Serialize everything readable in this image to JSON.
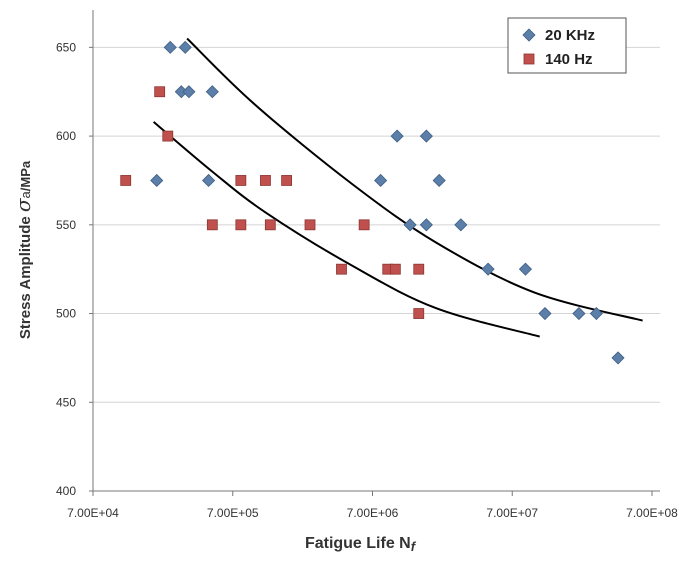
{
  "chart_data": {
    "type": "scatter",
    "x_scale": "log",
    "xlim": [
      70000,
      700000000
    ],
    "ylim": [
      400,
      675
    ],
    "grid": {
      "horizontal": true,
      "vertical": false
    },
    "legend_position": "top-right",
    "xlabel": "Fatigue Life N",
    "xlabel_sub": "f",
    "ylabel": "Stress Amplitude",
    "ylabel_symbol": "σ",
    "ylabel_sub": "a",
    "ylabel_unit": "/MPa",
    "x_ticks": [
      {
        "value": 70000,
        "label": "7.00E+04"
      },
      {
        "value": 700000,
        "label": "7.00E+05"
      },
      {
        "value": 7000000,
        "label": "7.00E+06"
      },
      {
        "value": 70000000,
        "label": "7.00E+07"
      },
      {
        "value": 700000000,
        "label": "7.00E+08"
      }
    ],
    "y_ticks": [
      {
        "value": 400,
        "label": "400"
      },
      {
        "value": 450,
        "label": "450"
      },
      {
        "value": 500,
        "label": "500"
      },
      {
        "value": 550,
        "label": "550"
      },
      {
        "value": 600,
        "label": "600"
      },
      {
        "value": 650,
        "label": "650"
      }
    ],
    "series": [
      {
        "name": "20 KHz",
        "marker": "diamond",
        "color": "#5b7fa8",
        "points": [
          {
            "x": 250000,
            "y": 650
          },
          {
            "x": 320000,
            "y": 650
          },
          {
            "x": 300000,
            "y": 625
          },
          {
            "x": 340000,
            "y": 625
          },
          {
            "x": 500000,
            "y": 625
          },
          {
            "x": 200000,
            "y": 575
          },
          {
            "x": 470000,
            "y": 575
          },
          {
            "x": 8000000,
            "y": 575
          },
          {
            "x": 10500000,
            "y": 600
          },
          {
            "x": 17000000,
            "y": 600
          },
          {
            "x": 21000000,
            "y": 575
          },
          {
            "x": 13000000,
            "y": 550
          },
          {
            "x": 17000000,
            "y": 550
          },
          {
            "x": 30000000,
            "y": 550
          },
          {
            "x": 47000000,
            "y": 525
          },
          {
            "x": 87000000,
            "y": 525
          },
          {
            "x": 120000000,
            "y": 500
          },
          {
            "x": 210000000,
            "y": 500
          },
          {
            "x": 280000000,
            "y": 500
          },
          {
            "x": 400000000,
            "y": 475
          }
        ]
      },
      {
        "name": "140 Hz",
        "marker": "square",
        "color": "#c0504d",
        "points": [
          {
            "x": 210000,
            "y": 625
          },
          {
            "x": 240000,
            "y": 600
          },
          {
            "x": 120000,
            "y": 575
          },
          {
            "x": 800000,
            "y": 575
          },
          {
            "x": 1200000,
            "y": 575
          },
          {
            "x": 1700000,
            "y": 575
          },
          {
            "x": 500000,
            "y": 550
          },
          {
            "x": 800000,
            "y": 550
          },
          {
            "x": 1300000,
            "y": 550
          },
          {
            "x": 2500000,
            "y": 550
          },
          {
            "x": 6100000,
            "y": 550
          },
          {
            "x": 4200000,
            "y": 525
          },
          {
            "x": 9000000,
            "y": 525
          },
          {
            "x": 10200000,
            "y": 525
          },
          {
            "x": 15000000,
            "y": 525
          },
          {
            "x": 15000000,
            "y": 500
          }
        ]
      }
    ],
    "trend_lines": [
      {
        "series": "20 KHz",
        "points": [
          [
            330000,
            655
          ],
          [
            1000000,
            618
          ],
          [
            5000000,
            573
          ],
          [
            20000000,
            540
          ],
          [
            100000000,
            512
          ],
          [
            600000000,
            496
          ]
        ]
      },
      {
        "series": "140 Hz",
        "points": [
          [
            190000,
            608
          ],
          [
            500000,
            580
          ],
          [
            1200000,
            557
          ],
          [
            5000000,
            527
          ],
          [
            20000000,
            503
          ],
          [
            110000000,
            487
          ]
        ]
      }
    ]
  }
}
